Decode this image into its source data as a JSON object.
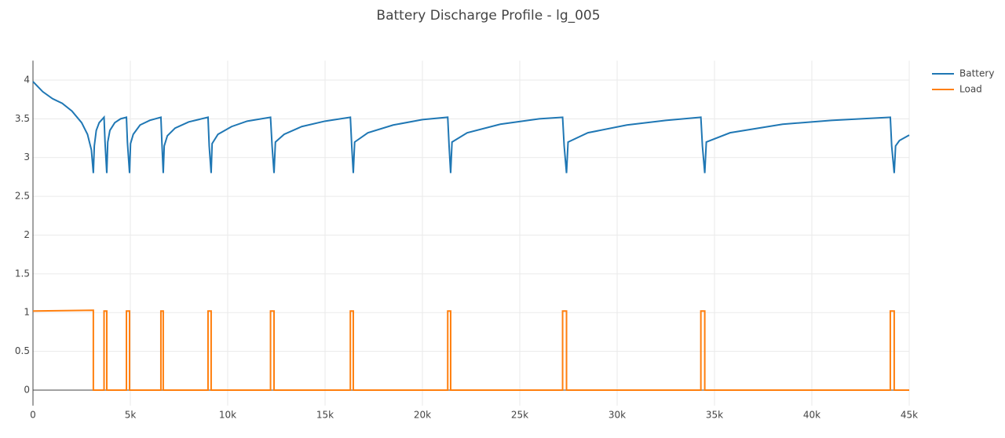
{
  "chart_data": {
    "type": "line",
    "title": "Battery Discharge Profile - lg_005",
    "xlim": [
      0,
      45000
    ],
    "ylim": [
      -0.2,
      4.25
    ],
    "xticks": [
      0,
      {
        "value": 5000,
        "label": "5k"
      },
      {
        "value": 10000,
        "label": "10k"
      },
      {
        "value": 15000,
        "label": "15k"
      },
      {
        "value": 20000,
        "label": "20k"
      },
      {
        "value": 25000,
        "label": "25k"
      },
      {
        "value": 30000,
        "label": "30k"
      },
      {
        "value": 35000,
        "label": "35k"
      },
      {
        "value": 40000,
        "label": "40k"
      },
      {
        "value": 45000,
        "label": "45k"
      }
    ],
    "yticks": [
      0,
      0.5,
      1,
      1.5,
      2,
      2.5,
      3,
      3.5,
      4
    ],
    "grid": true,
    "legend": "top-right",
    "series": [
      {
        "name": "Battery",
        "color": "#1f77b4",
        "x": [
          0,
          500,
          1000,
          1500,
          2000,
          2500,
          2800,
          3000,
          3100,
          3150,
          3250,
          3400,
          3650,
          3700,
          3790,
          3840,
          3950,
          4200,
          4500,
          4800,
          4850,
          4960,
          5010,
          5150,
          5500,
          6000,
          6570,
          6620,
          6690,
          6740,
          6900,
          7300,
          8000,
          8990,
          9050,
          9150,
          9200,
          9500,
          10200,
          11000,
          12200,
          12280,
          12380,
          12450,
          12900,
          13800,
          15000,
          16300,
          16370,
          16450,
          16520,
          17200,
          18500,
          20000,
          21300,
          21370,
          21450,
          21520,
          22300,
          24000,
          26000,
          27200,
          27280,
          27400,
          27480,
          28500,
          30500,
          32500,
          34300,
          34380,
          34500,
          34580,
          35800,
          38500,
          41000,
          44030,
          44100,
          44230,
          44300,
          44500,
          45000
        ],
        "values": [
          3.98,
          3.85,
          3.76,
          3.7,
          3.6,
          3.45,
          3.3,
          3.1,
          2.8,
          3.15,
          3.35,
          3.45,
          3.52,
          3.2,
          2.8,
          3.2,
          3.35,
          3.45,
          3.5,
          3.52,
          3.2,
          2.8,
          3.18,
          3.3,
          3.42,
          3.48,
          3.52,
          3.2,
          2.8,
          3.15,
          3.28,
          3.38,
          3.46,
          3.52,
          3.15,
          2.8,
          3.18,
          3.3,
          3.4,
          3.47,
          3.52,
          3.15,
          2.8,
          3.2,
          3.3,
          3.4,
          3.47,
          3.52,
          3.15,
          2.8,
          3.2,
          3.32,
          3.42,
          3.49,
          3.52,
          3.15,
          2.8,
          3.2,
          3.32,
          3.43,
          3.5,
          3.52,
          3.15,
          2.8,
          3.2,
          3.32,
          3.42,
          3.48,
          3.52,
          3.15,
          2.8,
          3.2,
          3.32,
          3.43,
          3.48,
          3.52,
          3.15,
          2.8,
          3.15,
          3.22,
          3.29
        ]
      },
      {
        "name": "Load",
        "color": "#ff7f0e",
        "x": [
          0,
          3100,
          3100,
          3650,
          3650,
          3790,
          3790,
          4800,
          4800,
          4960,
          4960,
          6570,
          6570,
          6690,
          6690,
          8990,
          8990,
          9150,
          9150,
          12200,
          12200,
          12380,
          12380,
          16300,
          16300,
          16450,
          16450,
          21300,
          21300,
          21450,
          21450,
          27200,
          27200,
          27400,
          27400,
          34300,
          34300,
          34500,
          34500,
          44030,
          44030,
          44230,
          44230,
          45000
        ],
        "values": [
          1.02,
          1.03,
          0,
          0,
          1.02,
          1.02,
          0,
          0,
          1.02,
          1.02,
          0,
          0,
          1.02,
          1.02,
          0,
          0,
          1.02,
          1.02,
          0,
          0,
          1.02,
          1.02,
          0,
          0,
          1.02,
          1.02,
          0,
          0,
          1.02,
          1.02,
          0,
          0,
          1.02,
          1.02,
          0,
          0,
          1.02,
          1.02,
          0,
          0,
          1.02,
          1.02,
          0,
          0
        ]
      }
    ]
  }
}
